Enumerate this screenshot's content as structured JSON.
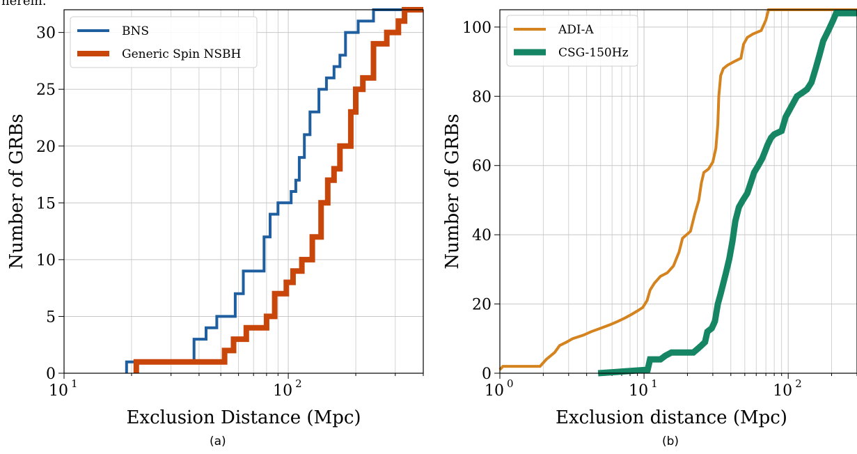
{
  "page": {
    "top_text_fragment": "herein.",
    "caption_a": "(a)",
    "caption_b": "(b)"
  },
  "chart_data": [
    {
      "type": "line",
      "step": true,
      "xscale": "log",
      "xlim": [
        10,
        400
      ],
      "ylim": [
        0,
        32
      ],
      "xlabel": "Exclusion Distance (Mpc)",
      "ylabel": "Number of GRBs",
      "xtick_labels": [
        {
          "base": "10",
          "exp": "1",
          "value": 10
        },
        {
          "base": "10",
          "exp": "2",
          "value": 100
        }
      ],
      "yticks": [
        0,
        5,
        10,
        15,
        20,
        25,
        30
      ],
      "grid": true,
      "legend": "top-left",
      "series": [
        {
          "name": "BNS",
          "color": "#1f5fa0",
          "points": [
            [
              19,
              0
            ],
            [
              19,
              1
            ],
            [
              38,
              1
            ],
            [
              38,
              3
            ],
            [
              43,
              3
            ],
            [
              43,
              4
            ],
            [
              48,
              4
            ],
            [
              48,
              5
            ],
            [
              58,
              5
            ],
            [
              58,
              7
            ],
            [
              63,
              7
            ],
            [
              63,
              9
            ],
            [
              78,
              9
            ],
            [
              78,
              12
            ],
            [
              83,
              12
            ],
            [
              83,
              14
            ],
            [
              90,
              14
            ],
            [
              90,
              15
            ],
            [
              103,
              15
            ],
            [
              103,
              16
            ],
            [
              108,
              16
            ],
            [
              108,
              17
            ],
            [
              112,
              17
            ],
            [
              112,
              19
            ],
            [
              118,
              19
            ],
            [
              118,
              21
            ],
            [
              125,
              21
            ],
            [
              125,
              23
            ],
            [
              137,
              23
            ],
            [
              137,
              25
            ],
            [
              148,
              25
            ],
            [
              148,
              26
            ],
            [
              160,
              26
            ],
            [
              160,
              27
            ],
            [
              170,
              27
            ],
            [
              170,
              28
            ],
            [
              180,
              28
            ],
            [
              180,
              30
            ],
            [
              205,
              30
            ],
            [
              205,
              31
            ],
            [
              240,
              31
            ],
            [
              240,
              32
            ],
            [
              400,
              32
            ]
          ]
        },
        {
          "name": "Generic Spin NSBH",
          "color": "#c8460a",
          "points": [
            [
              21,
              0
            ],
            [
              21,
              1
            ],
            [
              52,
              1
            ],
            [
              52,
              2
            ],
            [
              57,
              2
            ],
            [
              57,
              3
            ],
            [
              65,
              3
            ],
            [
              65,
              4
            ],
            [
              80,
              4
            ],
            [
              80,
              5
            ],
            [
              87,
              5
            ],
            [
              87,
              7
            ],
            [
              98,
              7
            ],
            [
              98,
              8
            ],
            [
              105,
              8
            ],
            [
              105,
              9
            ],
            [
              115,
              9
            ],
            [
              115,
              10
            ],
            [
              128,
              10
            ],
            [
              128,
              12
            ],
            [
              140,
              12
            ],
            [
              140,
              15
            ],
            [
              150,
              15
            ],
            [
              150,
              17
            ],
            [
              160,
              17
            ],
            [
              160,
              18
            ],
            [
              170,
              18
            ],
            [
              170,
              20
            ],
            [
              190,
              20
            ],
            [
              190,
              23
            ],
            [
              200,
              23
            ],
            [
              200,
              25
            ],
            [
              215,
              25
            ],
            [
              215,
              26
            ],
            [
              240,
              26
            ],
            [
              240,
              29
            ],
            [
              275,
              29
            ],
            [
              275,
              30
            ],
            [
              310,
              30
            ],
            [
              310,
              31
            ],
            [
              330,
              31
            ],
            [
              330,
              32
            ],
            [
              400,
              32
            ]
          ]
        }
      ]
    },
    {
      "type": "line",
      "xscale": "log",
      "xlim": [
        1,
        300
      ],
      "ylim": [
        0,
        105
      ],
      "xlabel": "Exclusion distance (Mpc)",
      "ylabel": "Number of GRBs",
      "xtick_labels": [
        {
          "base": "10",
          "exp": "0",
          "value": 1
        },
        {
          "base": "10",
          "exp": "1",
          "value": 10
        },
        {
          "base": "10",
          "exp": "2",
          "value": 100
        }
      ],
      "yticks": [
        0,
        20,
        40,
        60,
        80,
        100
      ],
      "grid": true,
      "legend": "top-left",
      "series": [
        {
          "name": "ADI-A",
          "color": "#d4831f",
          "points": [
            [
              1,
              1
            ],
            [
              1.05,
              2
            ],
            [
              1.9,
              2
            ],
            [
              2.1,
              4
            ],
            [
              2.4,
              6
            ],
            [
              2.6,
              8
            ],
            [
              2.9,
              9
            ],
            [
              3.2,
              10
            ],
            [
              3.8,
              11
            ],
            [
              4.3,
              12
            ],
            [
              5.0,
              13
            ],
            [
              5.8,
              14
            ],
            [
              6.6,
              15
            ],
            [
              7.4,
              16
            ],
            [
              8.2,
              17
            ],
            [
              9.0,
              18
            ],
            [
              9.8,
              19
            ],
            [
              10.5,
              21
            ],
            [
              11.0,
              24
            ],
            [
              11.8,
              26
            ],
            [
              13.0,
              28
            ],
            [
              14.5,
              29
            ],
            [
              16.0,
              31
            ],
            [
              17.5,
              35
            ],
            [
              18.5,
              39
            ],
            [
              21.0,
              41
            ],
            [
              22.5,
              46
            ],
            [
              24.0,
              50
            ],
            [
              25.0,
              55
            ],
            [
              26.0,
              58
            ],
            [
              28.0,
              59
            ],
            [
              30.0,
              61
            ],
            [
              31.5,
              65
            ],
            [
              32.5,
              72
            ],
            [
              33.0,
              80
            ],
            [
              34.0,
              86
            ],
            [
              35.5,
              88
            ],
            [
              38.0,
              89
            ],
            [
              42.0,
              90
            ],
            [
              47.0,
              91
            ],
            [
              49.0,
              95
            ],
            [
              52.0,
              97
            ],
            [
              57.0,
              98
            ],
            [
              65.0,
              99
            ],
            [
              70.0,
              102
            ],
            [
              73.0,
              105
            ],
            [
              300,
              105
            ]
          ]
        },
        {
          "name": "CSG-150Hz",
          "color": "#168563",
          "points": [
            [
              4.8,
              0
            ],
            [
              10.6,
              1
            ],
            [
              11.0,
              4
            ],
            [
              13.0,
              4
            ],
            [
              14.0,
              5
            ],
            [
              15.5,
              6
            ],
            [
              22.0,
              6
            ],
            [
              23.5,
              7
            ],
            [
              25.0,
              8
            ],
            [
              26.5,
              9
            ],
            [
              27.5,
              12
            ],
            [
              29.5,
              13
            ],
            [
              31.0,
              15
            ],
            [
              32.5,
              20
            ],
            [
              34.0,
              23
            ],
            [
              35.5,
              26
            ],
            [
              37.0,
              29
            ],
            [
              39.0,
              33
            ],
            [
              41.0,
              38
            ],
            [
              43.0,
              44
            ],
            [
              45.5,
              48
            ],
            [
              48.5,
              50
            ],
            [
              52.0,
              52
            ],
            [
              55.0,
              55
            ],
            [
              58.0,
              58
            ],
            [
              62.0,
              60
            ],
            [
              66.0,
              62
            ],
            [
              69.0,
              64
            ],
            [
              72.0,
              66
            ],
            [
              76.0,
              68
            ],
            [
              80.0,
              69
            ],
            [
              90.0,
              70
            ],
            [
              96.0,
              74
            ],
            [
              105.0,
              77
            ],
            [
              115.0,
              80
            ],
            [
              125.0,
              81
            ],
            [
              135.0,
              82
            ],
            [
              145.0,
              84
            ],
            [
              155.0,
              88
            ],
            [
              165.0,
              92
            ],
            [
              175.0,
              96
            ],
            [
              190.0,
              99
            ],
            [
              205.0,
              102
            ],
            [
              215.0,
              104
            ],
            [
              300,
              104
            ]
          ]
        }
      ]
    }
  ]
}
